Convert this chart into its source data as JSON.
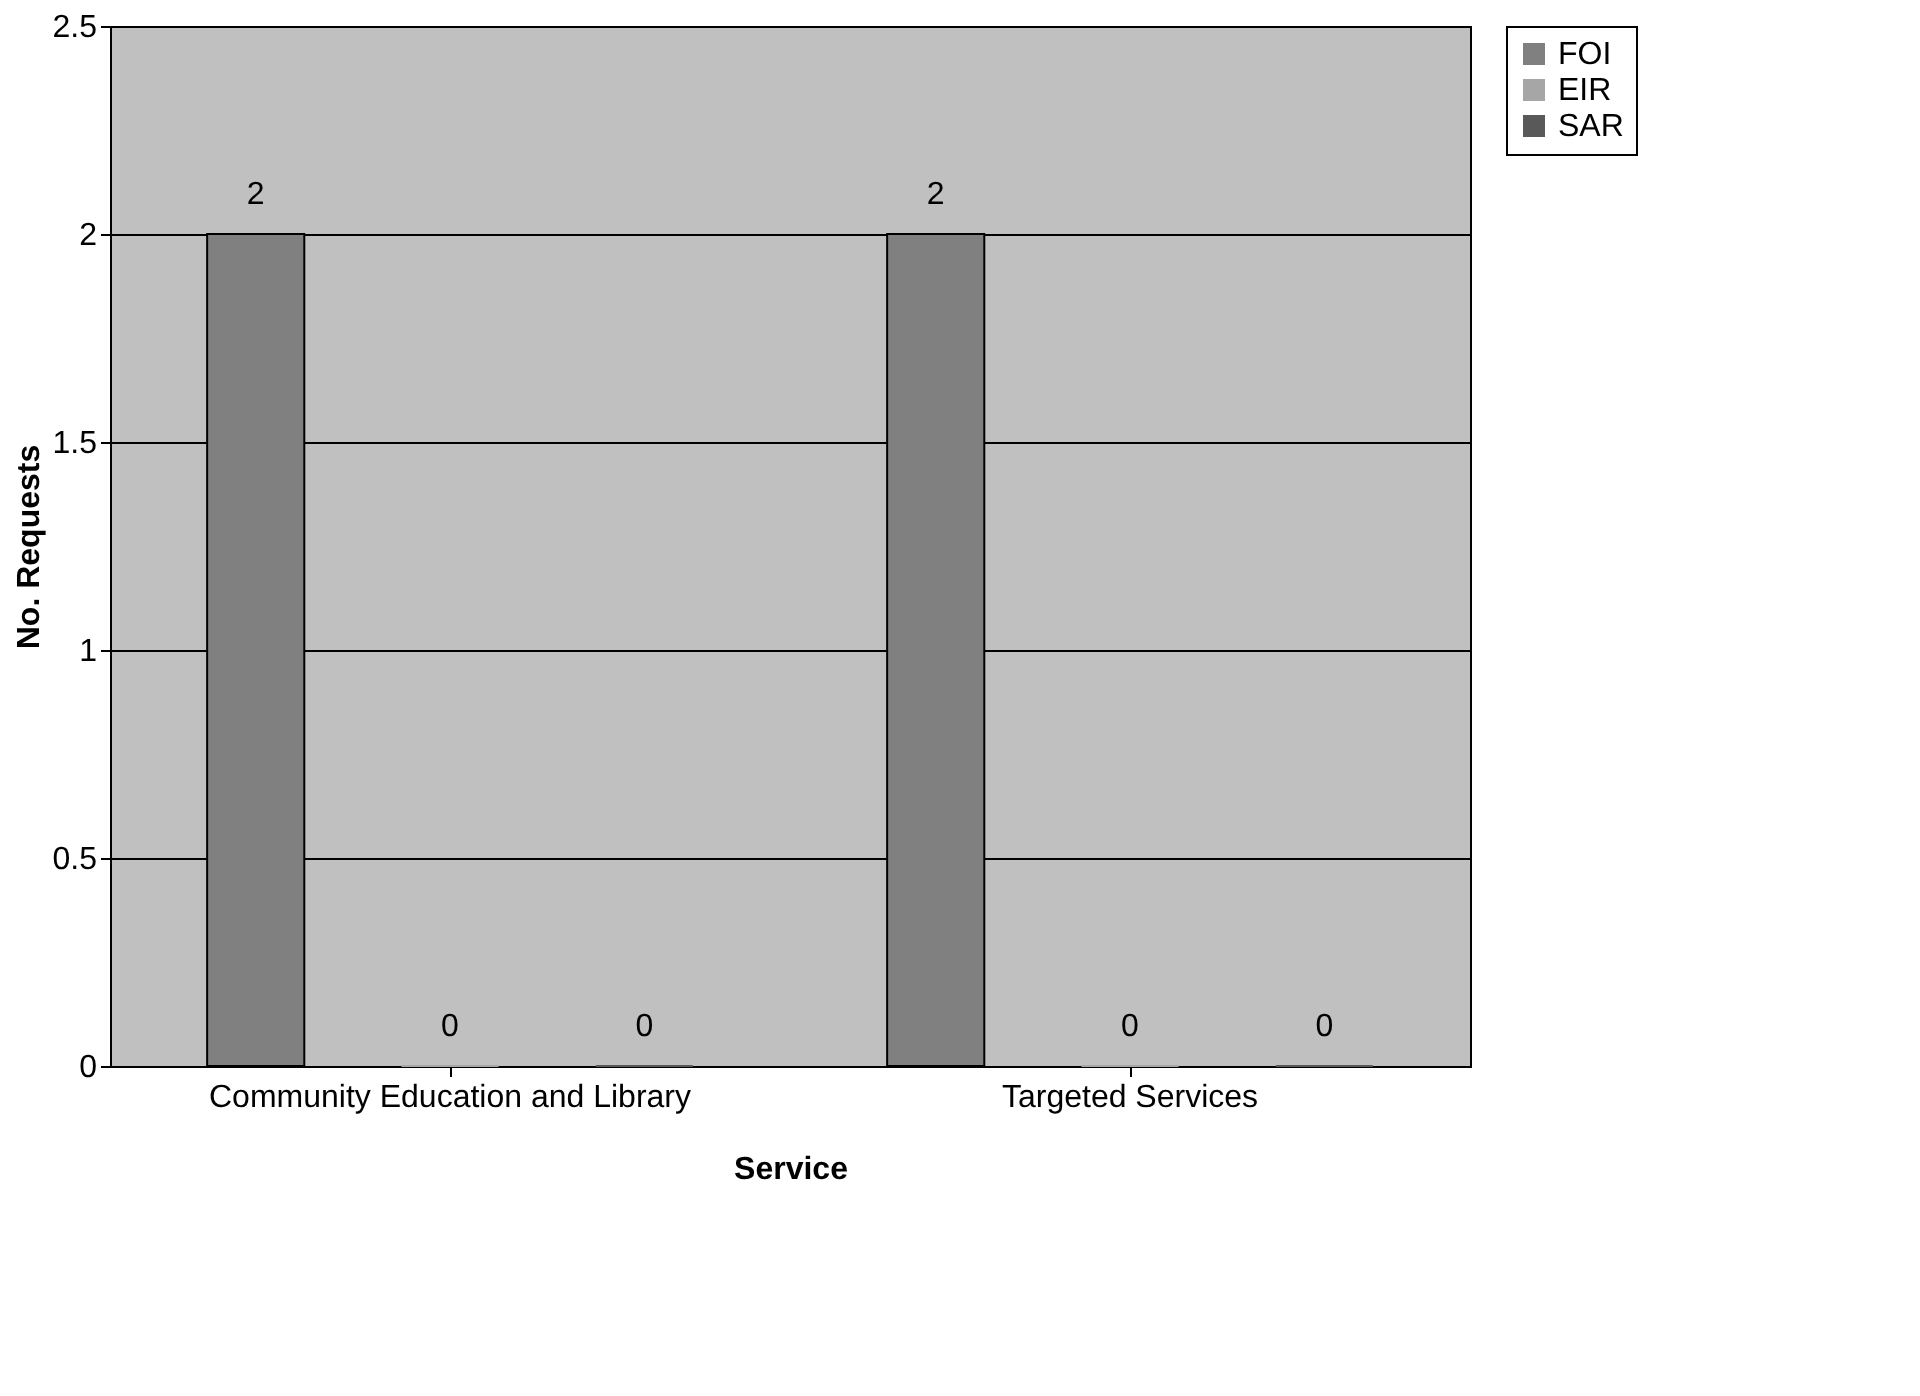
{
  "chart_data": {
    "type": "bar",
    "xlabel": "Service",
    "ylabel": "No. Requests",
    "categories": [
      "Community Education and Library",
      "Targeted Services"
    ],
    "series": [
      {
        "name": "FOI",
        "color": "#808080",
        "values": [
          2,
          2
        ]
      },
      {
        "name": "EIR",
        "color": "#a6a6a6",
        "values": [
          0,
          0
        ]
      },
      {
        "name": "SAR",
        "color": "#595959",
        "values": [
          0,
          0
        ]
      }
    ],
    "ylim": [
      0,
      2.5
    ],
    "yticks": [
      0,
      0.5,
      1,
      1.5,
      2,
      2.5
    ],
    "grid": "y",
    "legend": "right",
    "data_labels": true
  }
}
